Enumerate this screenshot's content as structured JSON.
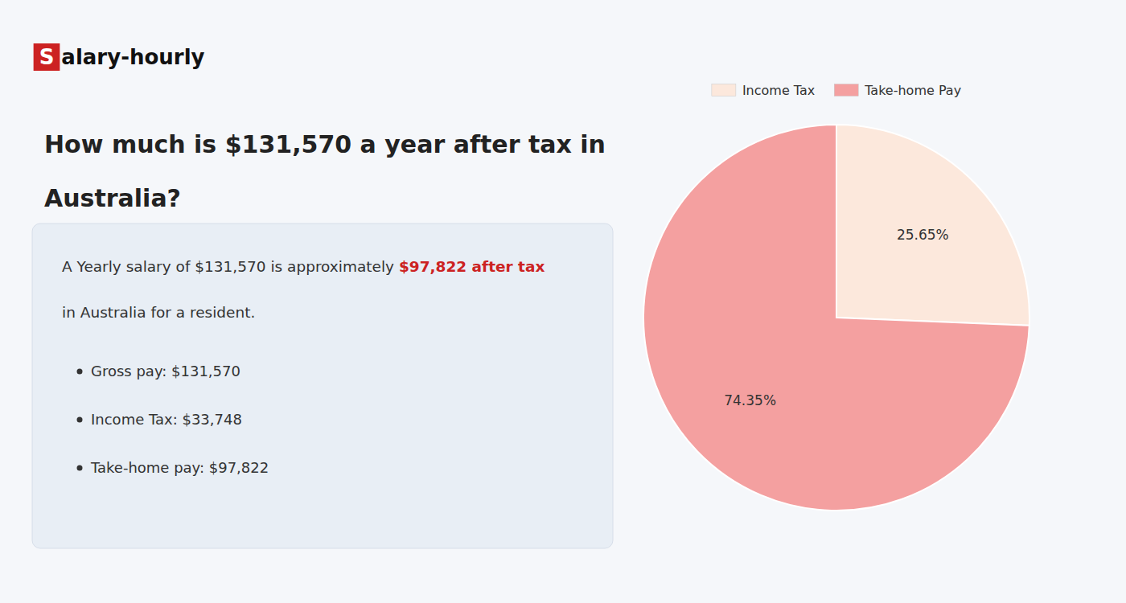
{
  "chart_data": {
    "type": "pie",
    "title": [
      "How much is $131,570 a year after tax in",
      "Australia?"
    ],
    "annotations": [
      "S",
      "alary-hourly",
      "A Yearly salary of $131,570 is approximately ",
      "$97,822 after tax",
      "in Australia for a resident.",
      "Gross pay: $131,570",
      "Income Tax: $33,748",
      "Take-home pay: $97,822"
    ],
    "categories": [
      "Income Tax",
      "Take-home Pay"
    ],
    "values": [
      25.65,
      74.35
    ],
    "value_labels": [
      "25.65%",
      "74.35%"
    ],
    "colors": [
      "#fce8dc",
      "#f4a0a0"
    ],
    "data_labels": true,
    "legend": "top"
  }
}
